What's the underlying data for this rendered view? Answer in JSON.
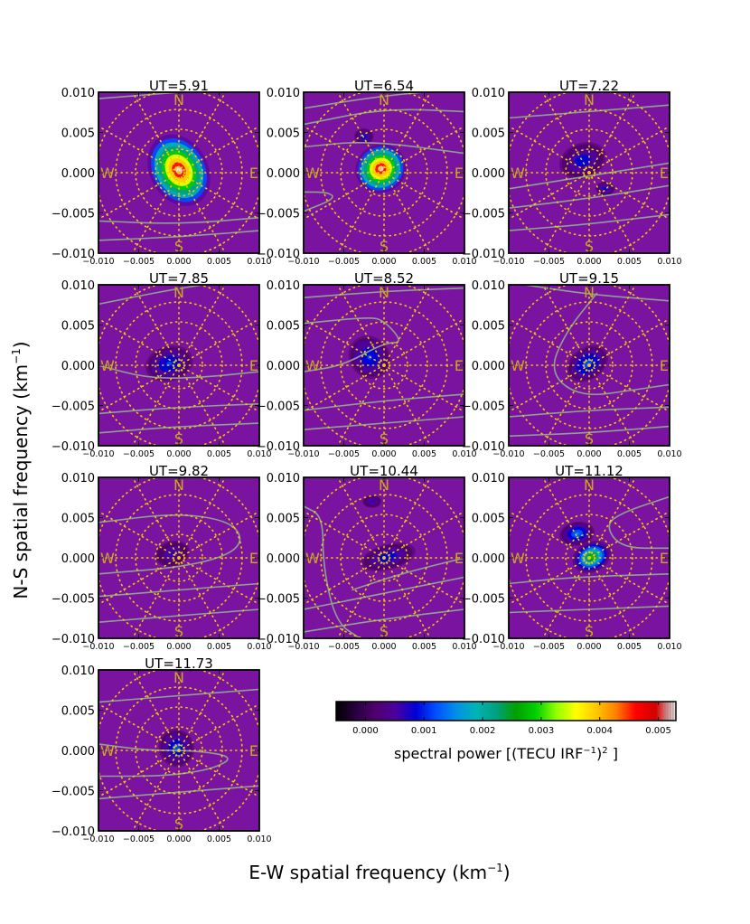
{
  "figure": {
    "ylabel_main": "N-S spatial frequency (km",
    "ylabel_sup": "−1",
    "ylabel_end": ")",
    "xlabel_main": "E-W spatial frequency (km",
    "xlabel_sup": "−1",
    "xlabel_end": ")"
  },
  "chart_data": {
    "type": "heatmap",
    "xlim": [
      -0.01,
      0.01
    ],
    "ylim": [
      -0.01,
      0.01
    ],
    "xticks": [
      "−0.010",
      "−0.005",
      "0.000",
      "0.005",
      "0.010"
    ],
    "yticks": [
      "0.010",
      "0.005",
      "0.000",
      "−0.005",
      "−0.010"
    ],
    "compass": {
      "north": "N",
      "south": "S",
      "east": "E",
      "west": "W"
    },
    "panels": [
      {
        "title": "UT=5.91",
        "blobs": [
          {
            "x": 0.0,
            "y": 0.0003,
            "rx": 0.0036,
            "ry": 0.0047,
            "rot": -30,
            "peak": 0.0052
          }
        ]
      },
      {
        "title": "UT=6.54",
        "blobs": [
          {
            "x": -0.0004,
            "y": 0.0005,
            "rx": 0.0032,
            "ry": 0.003,
            "rot": -30,
            "peak": 0.0052
          },
          {
            "x": -0.0025,
            "y": 0.0045,
            "rx": 0.0012,
            "ry": 0.001,
            "rot": 0,
            "peak": 0.001
          }
        ]
      },
      {
        "title": "UT=7.22",
        "blobs": [
          {
            "x": -0.0008,
            "y": 0.0015,
            "rx": 0.003,
            "ry": 0.0022,
            "rot": -20,
            "peak": 0.001
          },
          {
            "x": 0.002,
            "y": -0.002,
            "rx": 0.0012,
            "ry": 0.0009,
            "rot": 0,
            "peak": 0.0008
          }
        ]
      },
      {
        "title": "UT=7.85",
        "blobs": [
          {
            "x": -0.0012,
            "y": 0.0002,
            "rx": 0.003,
            "ry": 0.0022,
            "rot": -15,
            "peak": 0.0011
          }
        ]
      },
      {
        "title": "UT=8.52",
        "blobs": [
          {
            "x": -0.0018,
            "y": 0.001,
            "rx": 0.0025,
            "ry": 0.0028,
            "rot": -40,
            "peak": 0.0011
          }
        ]
      },
      {
        "title": "UT=9.15",
        "blobs": [
          {
            "x": -0.0002,
            "y": 0.0002,
            "rx": 0.0028,
            "ry": 0.002,
            "rot": -35,
            "peak": 0.0013
          }
        ]
      },
      {
        "title": "UT=9.82",
        "blobs": [
          {
            "x": -0.0008,
            "y": 0.0005,
            "rx": 0.0022,
            "ry": 0.0016,
            "rot": -15,
            "peak": 0.0007
          }
        ]
      },
      {
        "title": "UT=10.44",
        "blobs": [
          {
            "x": 0.0005,
            "y": 0.0001,
            "rx": 0.0035,
            "ry": 0.0016,
            "rot": -15,
            "peak": 0.0009
          },
          {
            "x": -0.0015,
            "y": 0.007,
            "rx": 0.0012,
            "ry": 0.0008,
            "rot": 0,
            "peak": 0.0007
          }
        ]
      },
      {
        "title": "UT=11.12",
        "blobs": [
          {
            "x": 0.0003,
            "y": 0.0001,
            "rx": 0.0025,
            "ry": 0.0019,
            "rot": -25,
            "peak": 0.003
          },
          {
            "x": -0.0015,
            "y": 0.003,
            "rx": 0.0022,
            "ry": 0.0015,
            "rot": -10,
            "peak": 0.0015
          }
        ]
      },
      {
        "title": "UT=11.73",
        "blobs": [
          {
            "x": -0.0003,
            "y": 0.0003,
            "rx": 0.0022,
            "ry": 0.0024,
            "rot": -20,
            "peak": 0.0012
          }
        ]
      }
    ],
    "colorbar": {
      "label_pre": "spectral power [(TECU IRF",
      "label_sup": "−1",
      "label_mid": ")",
      "label_sup2": "2",
      "label_end": " ]",
      "range": [
        -0.0005,
        0.0053
      ],
      "ticks": [
        {
          "value": 0.0,
          "label": "0.000"
        },
        {
          "value": 0.001,
          "label": "0.001"
        },
        {
          "value": 0.002,
          "label": "0.002"
        },
        {
          "value": 0.003,
          "label": "0.003"
        },
        {
          "value": 0.004,
          "label": "0.004"
        },
        {
          "value": 0.005,
          "label": "0.005"
        }
      ],
      "colors": [
        "#000000",
        "#2a0040",
        "#50006e",
        "#4b00a0",
        "#0000d8",
        "#0050ff",
        "#0090e6",
        "#00b4b4",
        "#00a080",
        "#00a000",
        "#00d000",
        "#90ff00",
        "#ffff00",
        "#ffc800",
        "#ff8000",
        "#ff0000",
        "#d00000",
        "#ececec"
      ]
    },
    "colors": {
      "background": "#7a14a0",
      "compass": "#c8a818",
      "dots": "#f0c800",
      "contour": "#90a090"
    }
  }
}
